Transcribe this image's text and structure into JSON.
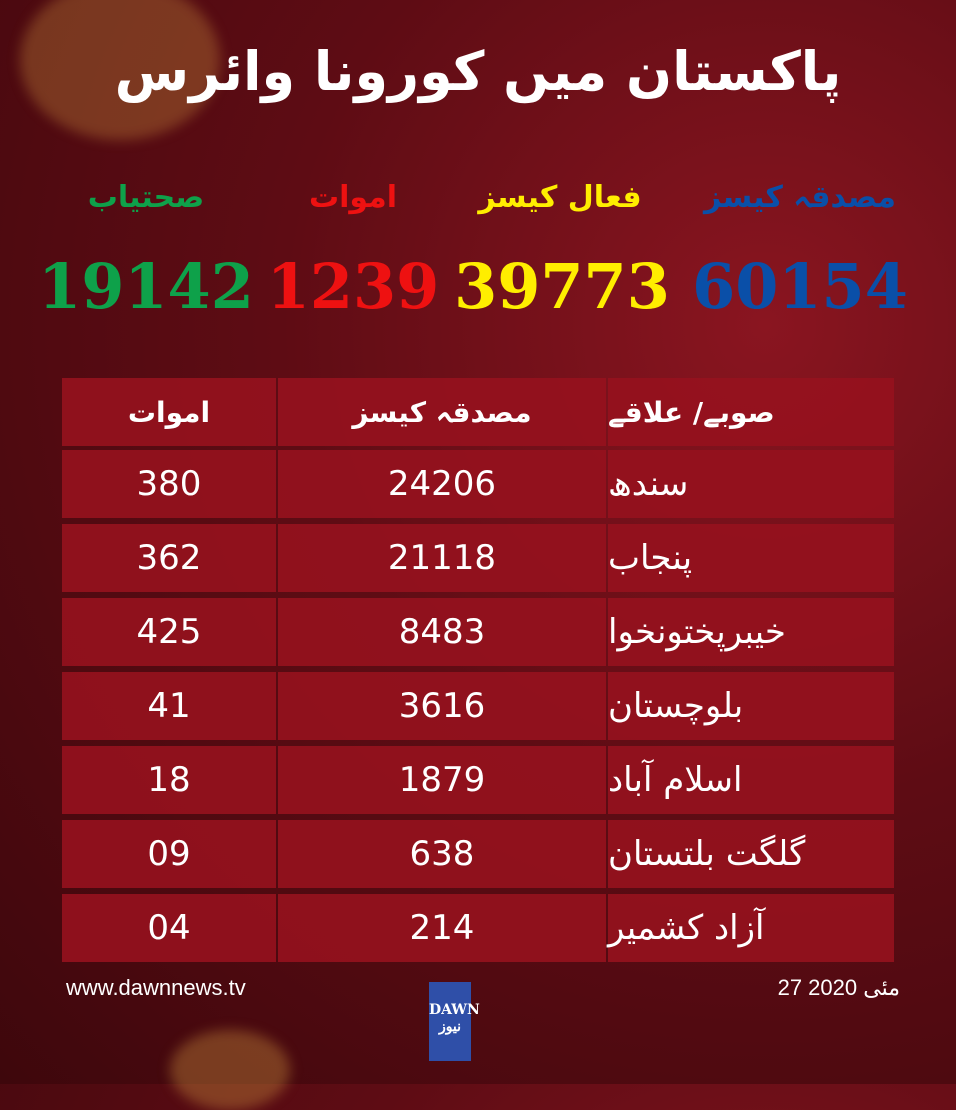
{
  "title": "پاکستان میں کورونا وائرس",
  "summary": [
    {
      "label": "مصدقہ کیسز",
      "value": "60154",
      "color": "#0a4fa8"
    },
    {
      "label": "فعال کیسز",
      "value": "39773",
      "color": "#ffee00"
    },
    {
      "label": "اموات",
      "value": "1239",
      "color": "#ee1111"
    },
    {
      "label": "صحتیاب",
      "value": "19142",
      "color": "#0ea14a"
    }
  ],
  "table": {
    "headers": {
      "region": "صوبے/ علاقے",
      "confirmed": "مصدقہ کیسز",
      "deaths": "اموات"
    },
    "rows": [
      {
        "region": "سندھ",
        "confirmed": "24206",
        "deaths": "380"
      },
      {
        "region": "پنجاب",
        "confirmed": "21118",
        "deaths": "362"
      },
      {
        "region": "خیبرپختونخوا",
        "confirmed": "8483",
        "deaths": "425"
      },
      {
        "region": "بلوچستان",
        "confirmed": "3616",
        "deaths": "41"
      },
      {
        "region": "اسلام آباد",
        "confirmed": "1879",
        "deaths": "18"
      },
      {
        "region": "گلگت بلتستان",
        "confirmed": "638",
        "deaths": "09"
      },
      {
        "region": "آزاد کشمیر",
        "confirmed": "214",
        "deaths": "04"
      }
    ]
  },
  "footer": {
    "url": "www.dawnnews.tv",
    "date": "27 مئی 2020",
    "logo": "DAWN نیوز"
  }
}
